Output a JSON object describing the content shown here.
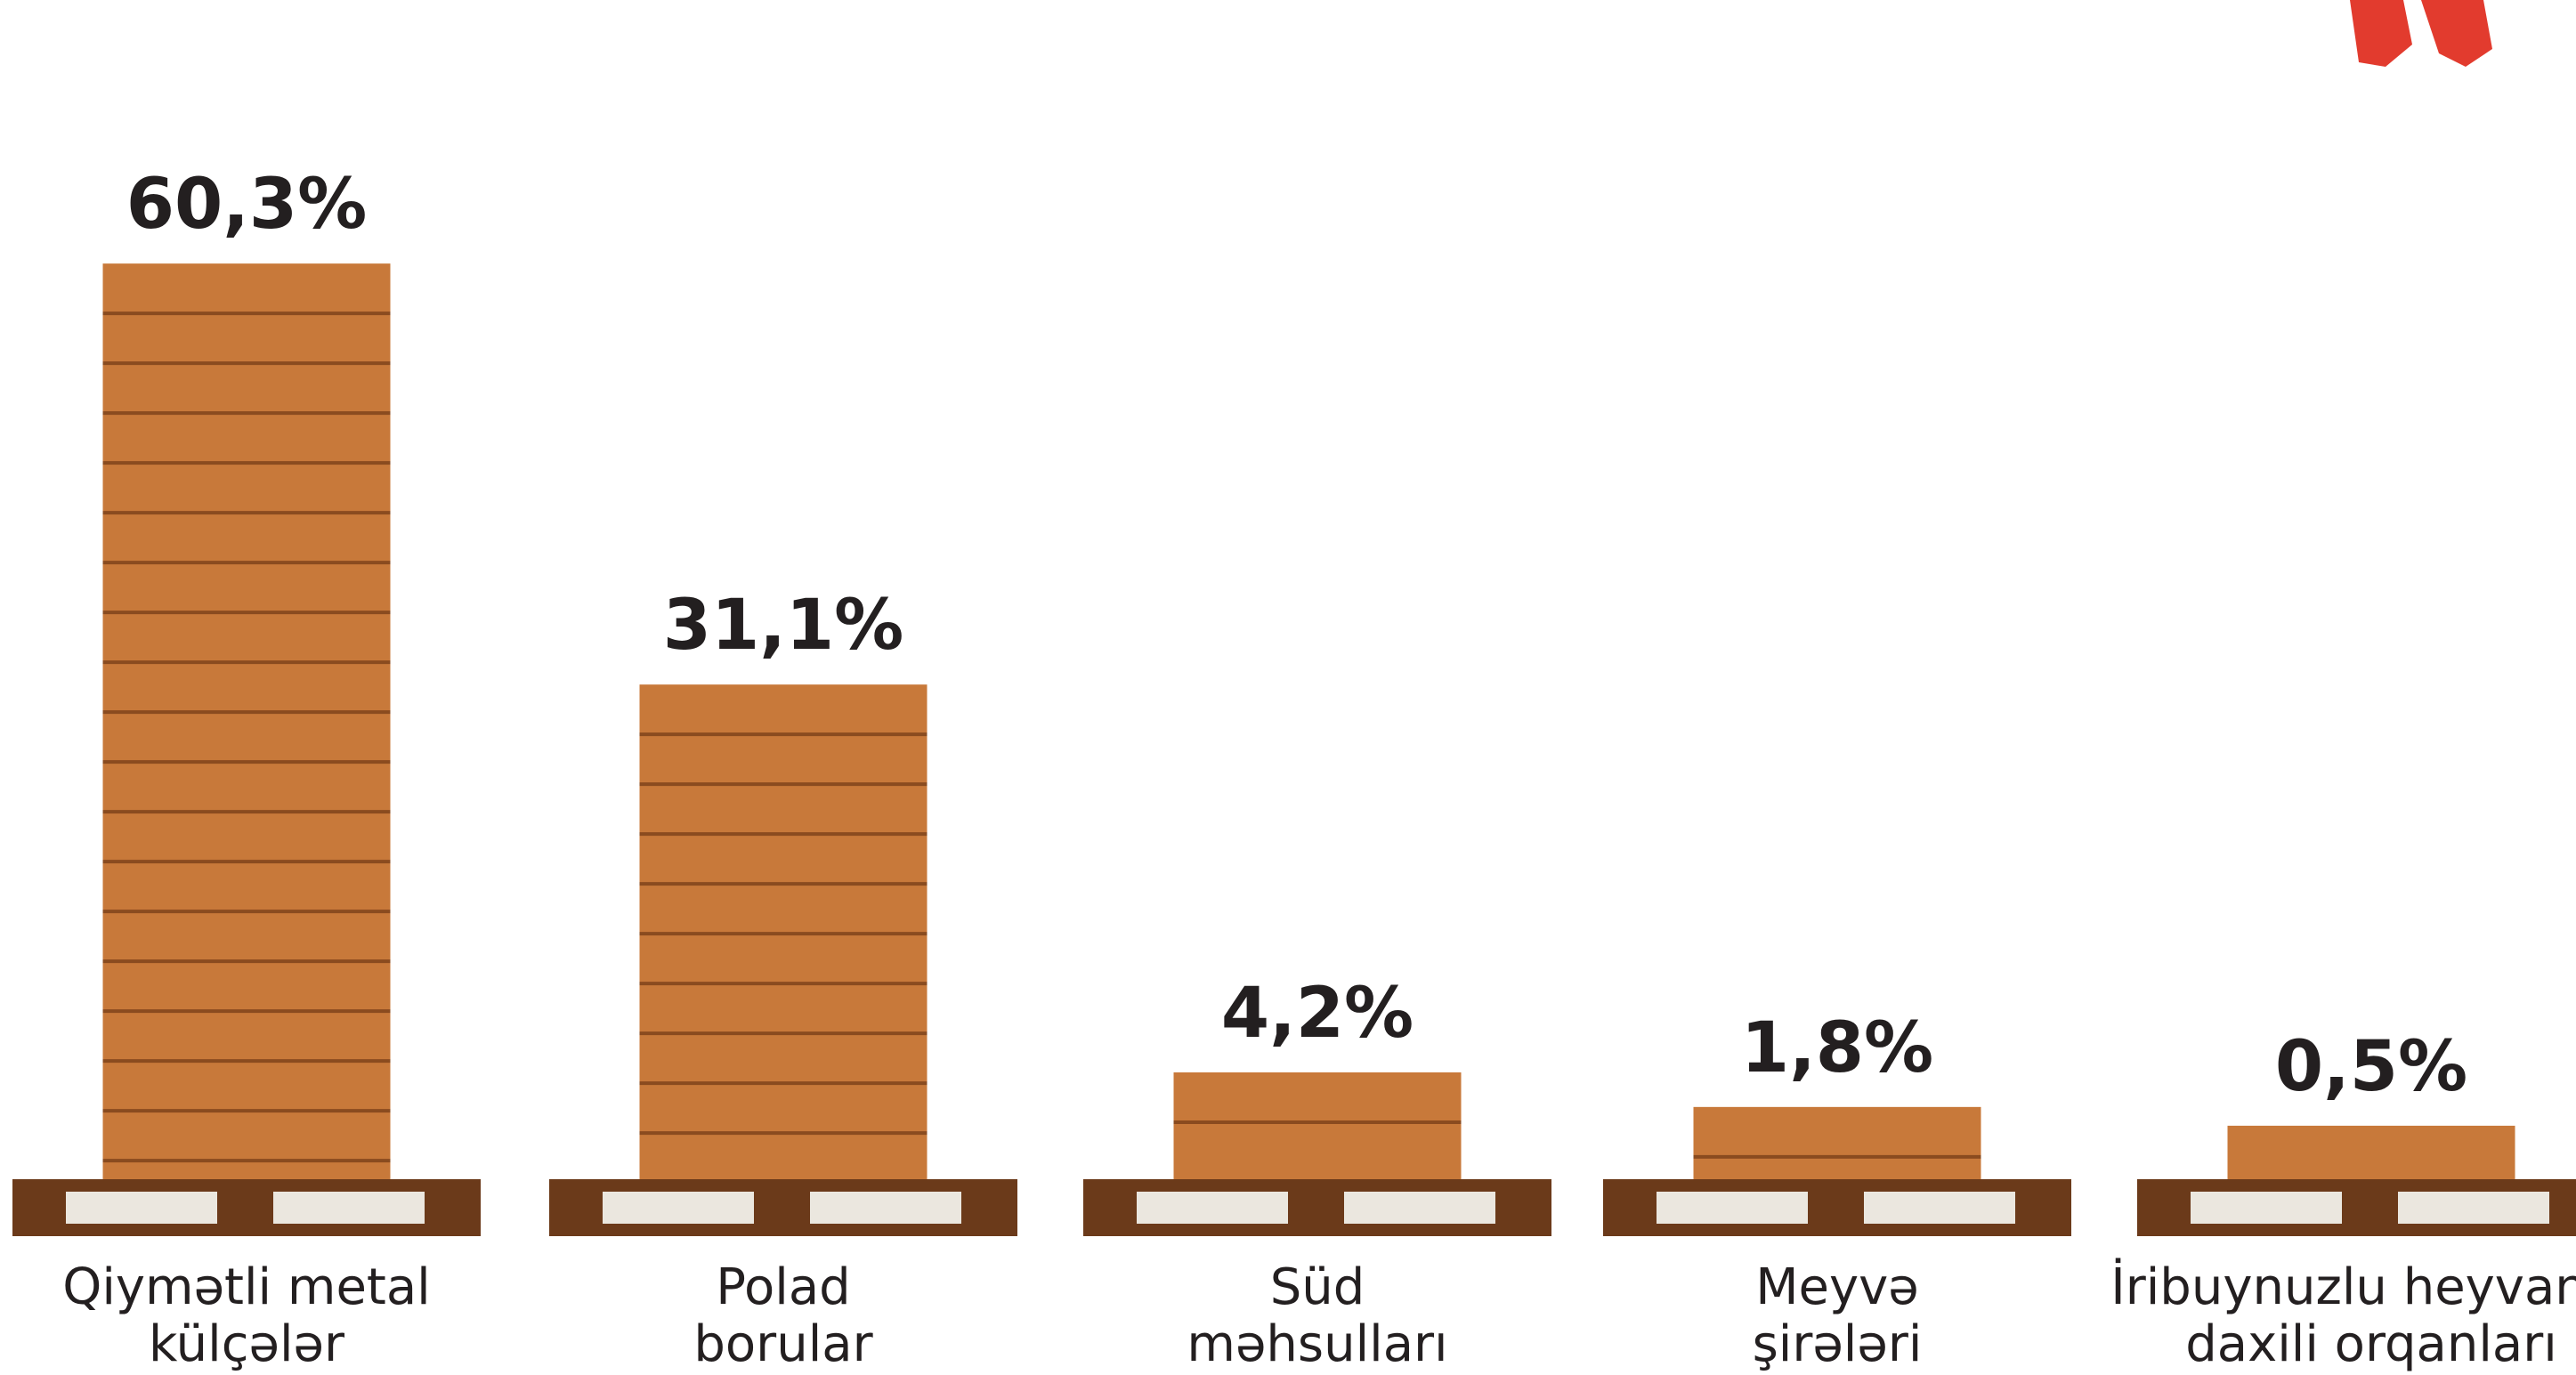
{
  "chart_data": {
    "type": "bar",
    "categories": [
      [
        "Qiymətli metal",
        "külçələr"
      ],
      [
        "Polad",
        "borular"
      ],
      [
        "Süd",
        "məhsulları"
      ],
      [
        "Meyvə",
        "şirələri"
      ],
      [
        "İribuynuzlu heyvanın",
        "daxili orqanları"
      ]
    ],
    "values": [
      60.3,
      31.1,
      4.2,
      1.8,
      0.5
    ],
    "value_labels": [
      "60,3%",
      "31,1%",
      "4,2%",
      "1,8%",
      "0,5%"
    ],
    "color": "#c8793a"
  }
}
